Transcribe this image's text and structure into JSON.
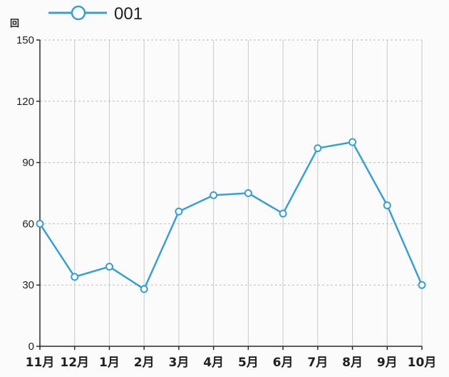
{
  "chart_data": {
    "type": "line",
    "ylabel": "回",
    "categories": [
      "11月",
      "12月",
      "1月",
      "2月",
      "3月",
      "4月",
      "5月",
      "6月",
      "7月",
      "8月",
      "9月",
      "10月"
    ],
    "series": [
      {
        "name": "001",
        "values": [
          60,
          34,
          39,
          28,
          66,
          74,
          75,
          65,
          97,
          100,
          69,
          30
        ],
        "color": "#3a9fd0",
        "marker": "circle"
      }
    ],
    "ylim": [
      0,
      150
    ],
    "yticks": [
      "0",
      "30",
      "60",
      "90",
      "120",
      "150"
    ],
    "grid": true,
    "legend": "top-left"
  }
}
